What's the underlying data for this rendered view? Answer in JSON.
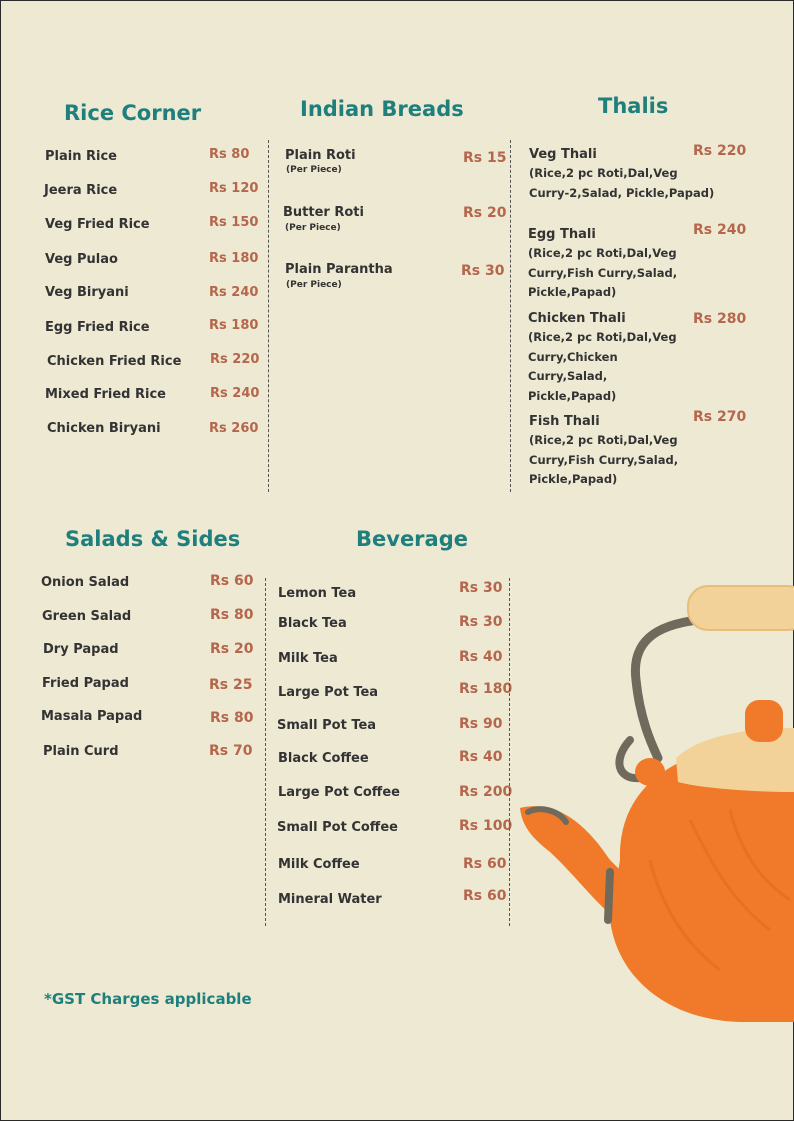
{
  "rice": {
    "title": "Rice Corner",
    "items": [
      {
        "name": "Plain  Rice",
        "price": "Rs 80"
      },
      {
        "name": "Jeera Rice",
        "price": "Rs 120"
      },
      {
        "name": "Veg Fried Rice",
        "price": "Rs 150"
      },
      {
        "name": "Veg Pulao",
        "price": "Rs 180"
      },
      {
        "name": "Veg Biryani",
        "price": "Rs 240"
      },
      {
        "name": "Egg Fried Rice",
        "price": "Rs 180"
      },
      {
        "name": "Chicken  Fried Rice",
        "price": "Rs 220"
      },
      {
        "name": "Mixed Fried Rice",
        "price": "Rs 240"
      },
      {
        "name": "Chicken Biryani",
        "price": "Rs 260"
      }
    ]
  },
  "breads": {
    "title": "Indian Breads",
    "items": [
      {
        "name": "Plain Roti",
        "note": "(Per Piece)",
        "price": "Rs 15"
      },
      {
        "name": "Butter Roti",
        "note": "(Per Piece)",
        "price": "Rs 20"
      },
      {
        "name": "Plain Parantha",
        "note": "(Per Piece)",
        "price": "Rs 30"
      }
    ]
  },
  "thalis": {
    "title": "Thalis",
    "items": [
      {
        "name": "Veg Thali",
        "price": "Rs 220",
        "desc": "(Rice,2 pc Roti,Dal,Veg Curry-2,Salad, Pickle,Papad)"
      },
      {
        "name": "Egg Thali",
        "price": "Rs 240",
        "desc": "(Rice,2 pc Roti,Dal,Veg Curry,Fish Curry,Salad, Pickle,Papad)"
      },
      {
        "name": "Chicken Thali",
        "price": "Rs 280",
        "desc": "(Rice,2 pc Roti,Dal,Veg Curry,Chicken Curry,Salad, Pickle,Papad)"
      },
      {
        "name": "Fish Thali",
        "price": "Rs 270",
        "desc": "(Rice,2 pc Roti,Dal,Veg Curry,Fish Curry,Salad, Pickle,Papad)"
      }
    ]
  },
  "salads": {
    "title": "Salads & Sides",
    "items": [
      {
        "name": "Onion Salad",
        "price": "Rs 60"
      },
      {
        "name": "Green Salad",
        "price": "Rs 80"
      },
      {
        "name": "Dry Papad",
        "price": "Rs 20"
      },
      {
        "name": "Fried Papad",
        "price": "Rs 25"
      },
      {
        "name": "Masala Papad",
        "price": "Rs 80"
      },
      {
        "name": "Plain Curd",
        "price": "Rs 70"
      }
    ]
  },
  "beverage": {
    "title": "Beverage",
    "items": [
      {
        "name": "Lemon Tea",
        "price": "Rs 30"
      },
      {
        "name": "Black Tea",
        "price": "Rs 30"
      },
      {
        "name": "Milk Tea",
        "price": "Rs 40"
      },
      {
        "name": "Large Pot Tea",
        "price": "Rs 180"
      },
      {
        "name": "Small Pot Tea",
        "price": "Rs 90"
      },
      {
        "name": "Black Coffee",
        "price": "Rs 40"
      },
      {
        "name": "Large Pot Coffee",
        "price": "Rs 200"
      },
      {
        "name": "Small Pot Coffee",
        "price": "Rs 100"
      },
      {
        "name": "Milk Coffee",
        "price": "Rs 60"
      },
      {
        "name": "Mineral Water",
        "price": "Rs 60"
      }
    ]
  },
  "footer": {
    "gst_note": "*GST Charges applicable"
  },
  "colors": {
    "heading": "#1e7f7d",
    "price": "#b5664c",
    "background": "#ede9d3",
    "kettle": "#f07a2a"
  },
  "decoration": {
    "illustration": "teapot-illustration"
  }
}
